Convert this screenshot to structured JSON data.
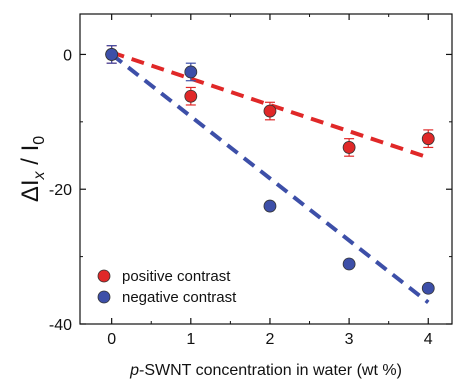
{
  "chart_data": {
    "type": "scatter",
    "xlabel": "p-SWNT concentration in water (wt %)",
    "xlabel_prefix": "p",
    "xlabel_rest": "-SWNT concentration in water (wt %)",
    "ylabel": "ΔIx / I0",
    "ylabel_parts": {
      "delta_I": "ΔI",
      "sub_x": "x",
      "slash": " / I",
      "sub_0": "0"
    },
    "xlim": [
      -0.4,
      4.3
    ],
    "ylim": [
      -40,
      6
    ],
    "xticks": [
      0,
      1,
      2,
      3,
      4
    ],
    "yticks": [
      0,
      -20,
      -40
    ],
    "grid": false,
    "legend_position": "bottom-left",
    "series": [
      {
        "name": "positive contrast",
        "color": "#e02828",
        "marker": "circle",
        "x": [
          0,
          1,
          2,
          3,
          4
        ],
        "y": [
          0,
          -6.2,
          -8.4,
          -13.8,
          -12.5
        ],
        "error": [
          1.3,
          1.3,
          1.3,
          1.3,
          1.3
        ],
        "fit": {
          "style": "dashed",
          "x": [
            0,
            4
          ],
          "y": [
            0.3,
            -15.3
          ]
        }
      },
      {
        "name": "negative contrast",
        "color": "#3d4fa8",
        "marker": "circle",
        "x": [
          0,
          1,
          2,
          3,
          4
        ],
        "y": [
          0,
          -2.6,
          -22.5,
          -31.1,
          -34.7
        ],
        "error": [
          1.3,
          1.3,
          0,
          0,
          0
        ],
        "fit": {
          "style": "dashed",
          "x": [
            0,
            4
          ],
          "y": [
            0,
            -36.8
          ]
        }
      }
    ]
  }
}
